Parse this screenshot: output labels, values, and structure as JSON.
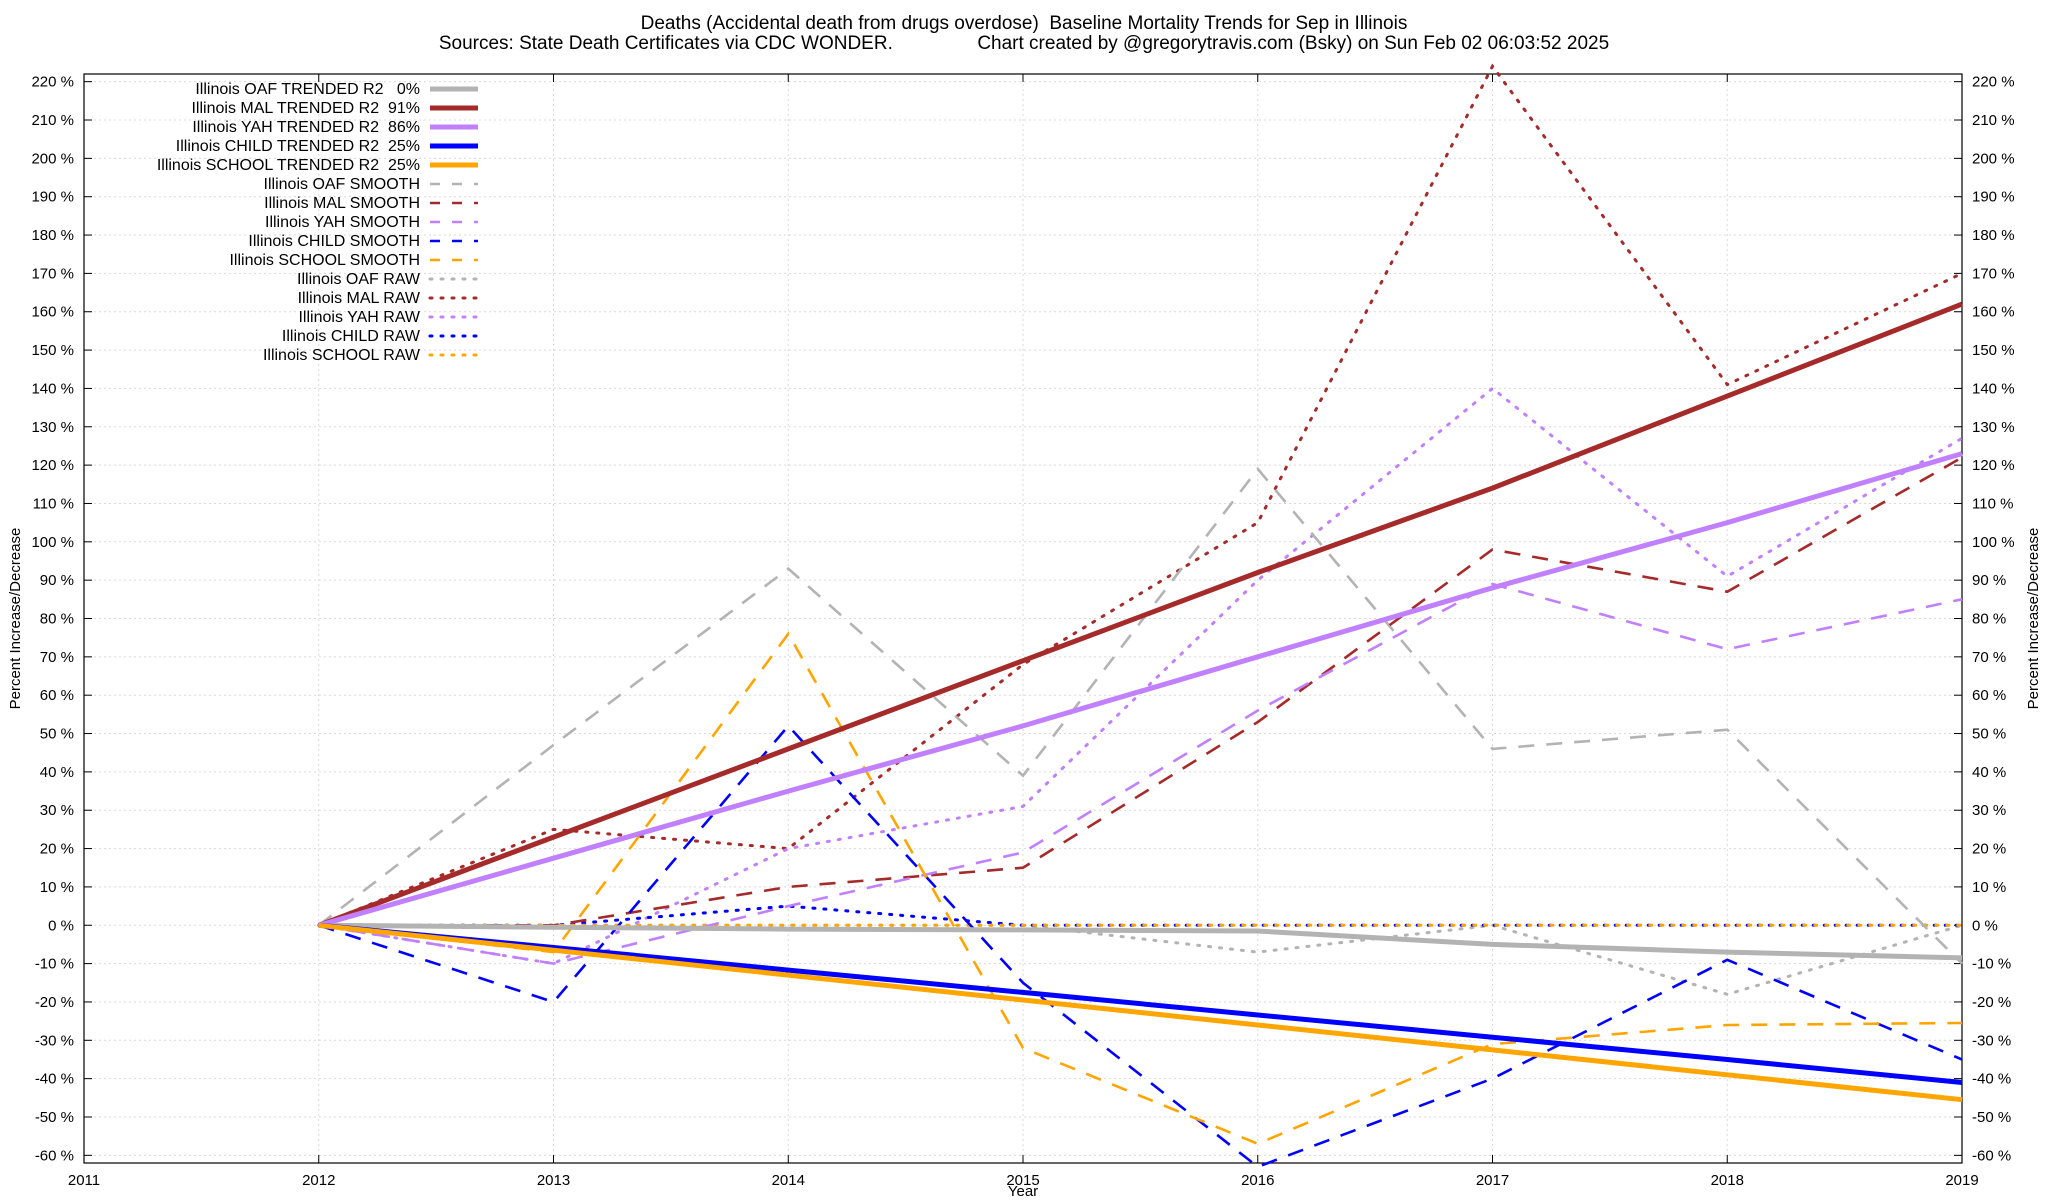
{
  "title_line1": "Deaths (Accidental death from drugs overdose)  Baseline Mortality Trends for Sep in Illinois",
  "title_line2": "Sources: State Death Certificates via CDC WONDER.                Chart created by @gregorytravis.com (Bsky) on Sun Feb 02 06:03:52 2025",
  "chart_data": {
    "type": "line",
    "xlabel": "Year",
    "ylabel": "Percent Increase/Decrease",
    "y_tick_suffix": " %",
    "xlim": [
      2011,
      2019
    ],
    "ylim": [
      -62,
      222
    ],
    "x_ticks": [
      2011,
      2012,
      2013,
      2014,
      2015,
      2016,
      2017,
      2018,
      2019
    ],
    "y_ticks": [
      -60,
      -50,
      -40,
      -30,
      -20,
      -10,
      0,
      10,
      20,
      30,
      40,
      50,
      60,
      70,
      80,
      90,
      100,
      110,
      120,
      130,
      140,
      150,
      160,
      170,
      180,
      190,
      200,
      210,
      220
    ],
    "grid": true,
    "legend_position": "top-left",
    "series": [
      {
        "name": "Illinois OAF TRENDED R2",
        "r2": "0%",
        "style": "solid",
        "color": "#b3b3b3",
        "x": [
          2012,
          2013,
          2014,
          2015,
          2016,
          2017,
          2018,
          2019
        ],
        "y": [
          0,
          -0.5,
          -1,
          -1.2,
          -1.5,
          -5,
          -7,
          -8.5
        ]
      },
      {
        "name": "Illinois MAL TRENDED R2",
        "r2": "91%",
        "style": "solid",
        "color": "#a52a2a",
        "x": [
          2012,
          2013,
          2014,
          2015,
          2016,
          2017,
          2018,
          2019
        ],
        "y": [
          0,
          23,
          46,
          69,
          92,
          114,
          138,
          162
        ]
      },
      {
        "name": "Illinois YAH TRENDED R2",
        "r2": "86%",
        "style": "solid",
        "color": "#c080ff",
        "x": [
          2012,
          2013,
          2014,
          2015,
          2016,
          2017,
          2018,
          2019
        ],
        "y": [
          0,
          17.5,
          35,
          52,
          70,
          88,
          105,
          123
        ]
      },
      {
        "name": "Illinois CHILD TRENDED R2",
        "r2": "25%",
        "style": "solid",
        "color": "#0000ff",
        "x": [
          2012,
          2013,
          2014,
          2015,
          2016,
          2017,
          2018,
          2019
        ],
        "y": [
          0,
          -5.8,
          -11.7,
          -17.5,
          -23.4,
          -29.2,
          -35,
          -41
        ]
      },
      {
        "name": "Illinois SCHOOL TRENDED R2",
        "r2": "25%",
        "style": "solid",
        "color": "#ffa500",
        "x": [
          2012,
          2013,
          2014,
          2015,
          2016,
          2017,
          2018,
          2019
        ],
        "y": [
          0,
          -6.5,
          -13,
          -19.5,
          -26,
          -32.5,
          -39,
          -45.5
        ]
      },
      {
        "name": "Illinois OAF SMOOTH",
        "r2": "",
        "style": "dashed",
        "color": "#b3b3b3",
        "x": [
          2012,
          2013,
          2014,
          2015,
          2016,
          2017,
          2018,
          2019
        ],
        "y": [
          0,
          47,
          93,
          39,
          119,
          46,
          51,
          -10
        ]
      },
      {
        "name": "Illinois MAL SMOOTH",
        "r2": "",
        "style": "dashed",
        "color": "#a52a2a",
        "x": [
          2012,
          2013,
          2014,
          2015,
          2016,
          2017,
          2018,
          2019
        ],
        "y": [
          0,
          0,
          10,
          15,
          53,
          98,
          87,
          122
        ]
      },
      {
        "name": "Illinois YAH SMOOTH",
        "r2": "",
        "style": "dashed",
        "color": "#c080ff",
        "x": [
          2012,
          2013,
          2014,
          2015,
          2016,
          2017,
          2018,
          2019
        ],
        "y": [
          0,
          -10,
          5,
          19,
          56,
          89,
          72,
          85
        ]
      },
      {
        "name": "Illinois CHILD SMOOTH",
        "r2": "",
        "style": "dashed",
        "color": "#0000ff",
        "x": [
          2012,
          2013,
          2014,
          2015,
          2016,
          2017,
          2018,
          2019
        ],
        "y": [
          0,
          -20,
          52,
          -15,
          -63,
          -40,
          -9,
          -35
        ]
      },
      {
        "name": "Illinois SCHOOL SMOOTH",
        "r2": "",
        "style": "dashed",
        "color": "#ffa500",
        "x": [
          2012,
          2013,
          2014,
          2015,
          2016,
          2017,
          2018,
          2019
        ],
        "y": [
          0,
          -7,
          76,
          -32,
          -57,
          -31,
          -26,
          -25.5
        ]
      },
      {
        "name": "Illinois OAF RAW",
        "r2": "",
        "style": "dotted",
        "color": "#b3b3b3",
        "x": [
          2012,
          2013,
          2014,
          2015,
          2016,
          2017,
          2018,
          2019
        ],
        "y": [
          0,
          0,
          0,
          0,
          -7,
          0,
          -18,
          0
        ]
      },
      {
        "name": "Illinois MAL RAW",
        "r2": "",
        "style": "dotted",
        "color": "#a52a2a",
        "x": [
          2012,
          2013,
          2014,
          2015,
          2016,
          2017,
          2018,
          2019
        ],
        "y": [
          0,
          25,
          20,
          68,
          105,
          224,
          141,
          170
        ]
      },
      {
        "name": "Illinois YAH RAW",
        "r2": "",
        "style": "dotted",
        "color": "#c080ff",
        "x": [
          2012,
          2013,
          2014,
          2015,
          2016,
          2017,
          2018,
          2019
        ],
        "y": [
          0,
          -10,
          20,
          31,
          90,
          140,
          91,
          127
        ]
      },
      {
        "name": "Illinois CHILD RAW",
        "r2": "",
        "style": "dotted",
        "color": "#0000ff",
        "x": [
          2012,
          2013,
          2014,
          2015,
          2016,
          2017,
          2018,
          2019
        ],
        "y": [
          0,
          0,
          5,
          0,
          0,
          0,
          0,
          0
        ]
      },
      {
        "name": "Illinois SCHOOL RAW",
        "r2": "",
        "style": "dotted",
        "color": "#ffa500",
        "x": [
          2012,
          2013,
          2014,
          2015,
          2016,
          2017,
          2018,
          2019
        ],
        "y": [
          0,
          0,
          0,
          0,
          0,
          0,
          0,
          0
        ]
      }
    ]
  }
}
